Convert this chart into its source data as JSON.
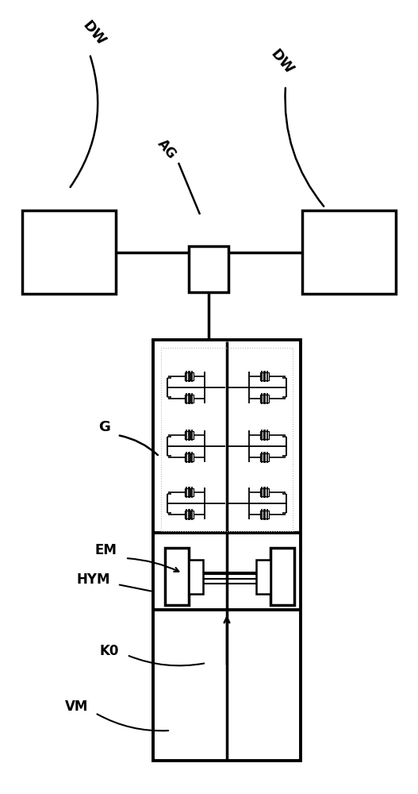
{
  "bg_color": "#ffffff",
  "line_color": "#000000",
  "fig_width": 5.27,
  "fig_height": 10.0,
  "labels": {
    "DW_left": "DW",
    "DW_right": "DW",
    "AG": "AG",
    "G": "G",
    "EM": "EM",
    "HYM": "HYM",
    "K0": "K0",
    "VM": "VM"
  }
}
